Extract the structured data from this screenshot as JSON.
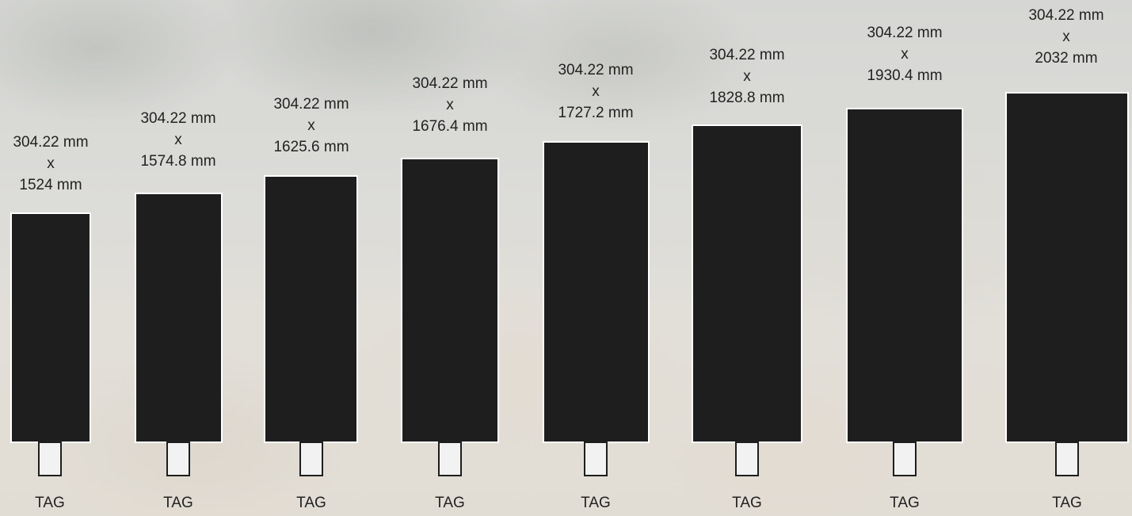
{
  "banners": [
    {
      "width_text": "304.22 mm",
      "times": "x",
      "height_text": "1524 mm",
      "tag": "TAG"
    },
    {
      "width_text": "304.22 mm",
      "times": "x",
      "height_text": "1574.8 mm",
      "tag": "TAG"
    },
    {
      "width_text": "304.22 mm",
      "times": "x",
      "height_text": "1625.6 mm",
      "tag": "TAG"
    },
    {
      "width_text": "304.22 mm",
      "times": "x",
      "height_text": "1676.4 mm",
      "tag": "TAG"
    },
    {
      "width_text": "304.22 mm",
      "times": "x",
      "height_text": "1727.2 mm",
      "tag": "TAG"
    },
    {
      "width_text": "304.22 mm",
      "times": "x",
      "height_text": "1828.8 mm",
      "tag": "TAG"
    },
    {
      "width_text": "304.22 mm",
      "times": "x",
      "height_text": "1930.4 mm",
      "tag": "TAG"
    },
    {
      "width_text": "304.22 mm",
      "times": "x",
      "height_text": "2032 mm",
      "tag": "TAG"
    }
  ],
  "colors": {
    "panel": "#1e1e1e",
    "panel_border": "#ffffff",
    "tag_fill": "#f2f2f2",
    "text": "#222222"
  }
}
